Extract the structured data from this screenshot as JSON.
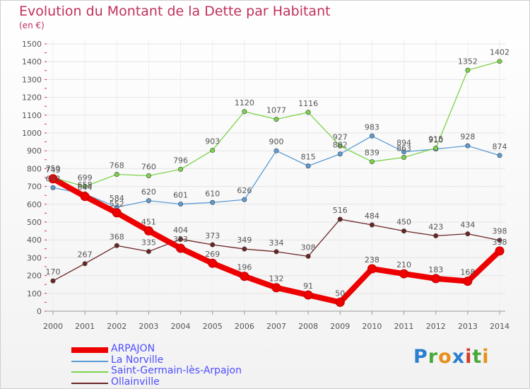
{
  "title": "Evolution du Montant de la Dette par Habitant",
  "unit": "(en €)",
  "logo": {
    "text": "Proxiti",
    "letters": [
      {
        "ch": "P",
        "color": "#2a7fd0"
      },
      {
        "ch": "r",
        "color": "#48a93a"
      },
      {
        "ch": "o",
        "color": "#e8901a"
      },
      {
        "ch": "x",
        "color": "#2a7fd0"
      },
      {
        "ch": "i",
        "color": "#d33a2a"
      },
      {
        "ch": "t",
        "color": "#48a93a"
      },
      {
        "ch": "i",
        "color": "#e8901a"
      }
    ]
  },
  "chart_data": {
    "type": "line",
    "title": "Evolution du Montant de la Dette par Habitant",
    "ylabel": "(en €)",
    "xlabel": "",
    "ylim": [
      0,
      1500
    ],
    "yticks": [
      0,
      100,
      200,
      300,
      400,
      500,
      600,
      700,
      800,
      900,
      1000,
      1100,
      1200,
      1300,
      1400,
      1500
    ],
    "x": [
      "2000",
      "2001",
      "2002",
      "2003",
      "2004",
      "2005",
      "2006",
      "2007",
      "2008",
      "2009",
      "2010",
      "2011",
      "2012",
      "2013",
      "2014"
    ],
    "grid": true,
    "legend_position": "bottom-left",
    "series": [
      {
        "name": "ARPAJON",
        "color": "#ee0000",
        "values": [
          743,
          644,
          552,
          451,
          353,
          269,
          196,
          132,
          91,
          50,
          238,
          210,
          183,
          168,
          338
        ]
      },
      {
        "name": "La Norville",
        "color": "#5b9bd5",
        "values": [
          693,
          658,
          584,
          620,
          601,
          610,
          626,
          900,
          815,
          882,
          983,
          894,
          910,
          928,
          874
        ]
      },
      {
        "name": "Saint-Germain-lès-Arpajon",
        "color": "#7bd34a",
        "values": [
          750,
          699,
          768,
          760,
          796,
          903,
          1120,
          1077,
          1116,
          927,
          839,
          863,
          915,
          1352,
          1402
        ]
      },
      {
        "name": "Ollainville",
        "color": "#6b2424",
        "values": [
          170,
          267,
          368,
          335,
          404,
          373,
          349,
          334,
          308,
          516,
          484,
          450,
          423,
          434,
          398
        ]
      }
    ]
  }
}
